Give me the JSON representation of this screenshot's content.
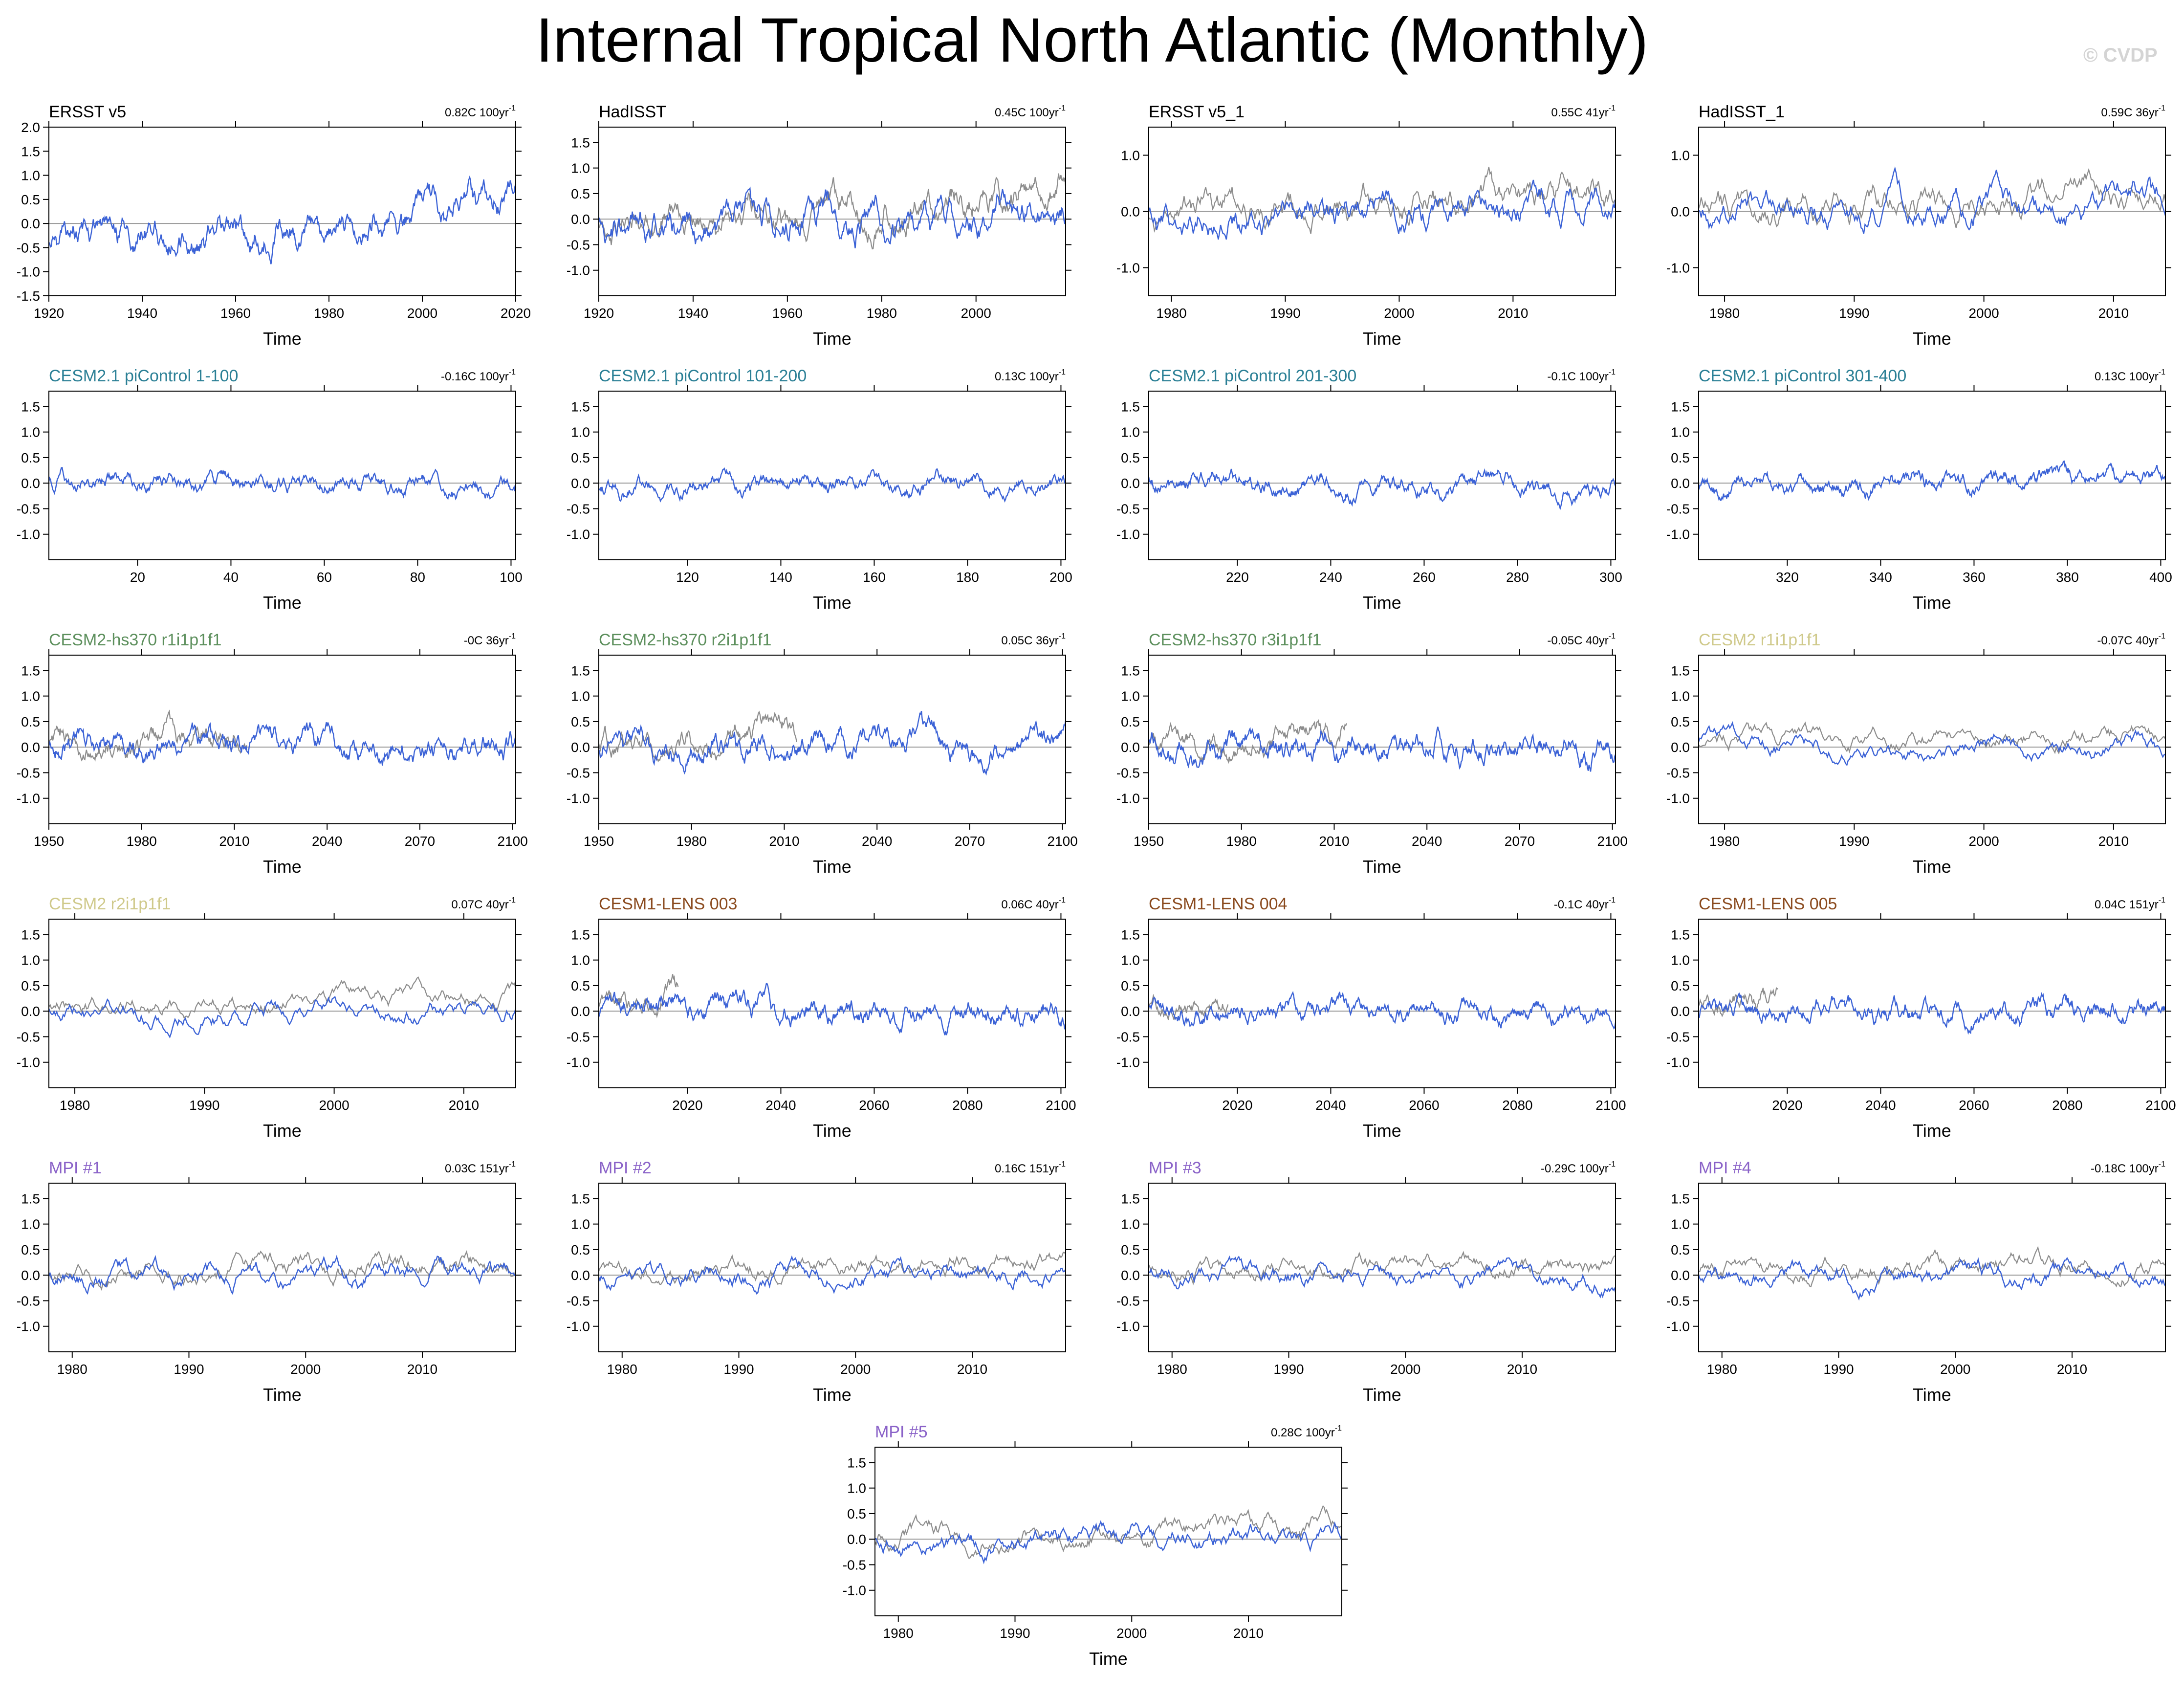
{
  "title": "Internal Tropical North Atlantic (Monthly)",
  "watermark": "© CVDP",
  "colors": {
    "simulation": "#3b62d6",
    "reference": "#8c8c8c",
    "zero_line": "#9a9a9a",
    "frame": "#000000"
  },
  "chart_data": [
    {
      "type": "line",
      "title": "ERSST v5",
      "title_color": "#000000",
      "trend": "0.82C 100yr",
      "trend_exp": "-1",
      "xlabel": "Time",
      "xlim": [
        1920,
        2020
      ],
      "xticks": [
        1920,
        1940,
        1960,
        1980,
        2000,
        2020
      ],
      "ylim": [
        -1.5,
        2.0
      ],
      "yticks": [
        -1.5,
        -1.0,
        -0.5,
        0.0,
        0.5,
        1.0,
        1.5,
        2.0
      ],
      "ref": false,
      "amp": 0.38,
      "trend_slope": 0.82,
      "seed": 1
    },
    {
      "type": "line",
      "title": "HadISST",
      "title_color": "#000000",
      "trend": "0.45C 100yr",
      "trend_exp": "-1",
      "xlabel": "Time",
      "xlim": [
        1920,
        2019
      ],
      "xticks": [
        1920,
        1940,
        1960,
        1980,
        2000
      ],
      "ylim": [
        -1.5,
        1.8
      ],
      "yticks": [
        -1.0,
        -0.5,
        0.0,
        0.5,
        1.0,
        1.5
      ],
      "ref": true,
      "amp": 0.38,
      "trend_slope": 0.45,
      "seed": 2
    },
    {
      "type": "line",
      "title": "ERSST v5_1",
      "title_color": "#000000",
      "trend": "0.55C 41yr",
      "trend_exp": "-1",
      "xlabel": "Time",
      "xlim": [
        1978,
        2019
      ],
      "xticks": [
        1980,
        1990,
        2000,
        2010
      ],
      "ylim": [
        -1.5,
        1.5
      ],
      "yticks": [
        -1.0,
        0.0,
        1.0
      ],
      "ref": true,
      "amp": 0.36,
      "trend_slope": 0.55,
      "seed": 3
    },
    {
      "type": "line",
      "title": "HadISST_1",
      "title_color": "#000000",
      "trend": "0.59C 36yr",
      "trend_exp": "-1",
      "xlabel": "Time",
      "xlim": [
        1978,
        2014
      ],
      "xticks": [
        1980,
        1990,
        2000,
        2010
      ],
      "ylim": [
        -1.5,
        1.5
      ],
      "yticks": [
        -1.0,
        0.0,
        1.0
      ],
      "ref": true,
      "amp": 0.36,
      "trend_slope": 0.59,
      "seed": 4
    },
    {
      "type": "line",
      "title": "CESM2.1 piControl 1-100",
      "title_color": "#2a7f95",
      "trend": "-0.16C 100yr",
      "trend_exp": "-1",
      "xlabel": "Time",
      "xlim": [
        1,
        101
      ],
      "xticks": [
        20,
        40,
        60,
        80,
        100
      ],
      "ylim": [
        -1.5,
        1.8
      ],
      "yticks": [
        -1.0,
        -0.5,
        0.0,
        0.5,
        1.0,
        1.5
      ],
      "ref": false,
      "amp": 0.2,
      "trend_slope": -0.16,
      "seed": 5
    },
    {
      "type": "line",
      "title": "CESM2.1 piControl 101-200",
      "title_color": "#2a7f95",
      "trend": "0.13C 100yr",
      "trend_exp": "-1",
      "xlabel": "Time",
      "xlim": [
        101,
        201
      ],
      "xticks": [
        120,
        140,
        160,
        180,
        200
      ],
      "ylim": [
        -1.5,
        1.8
      ],
      "yticks": [
        -1.0,
        -0.5,
        0.0,
        0.5,
        1.0,
        1.5
      ],
      "ref": false,
      "amp": 0.2,
      "trend_slope": 0.13,
      "seed": 6
    },
    {
      "type": "line",
      "title": "CESM2.1 piControl 201-300",
      "title_color": "#2a7f95",
      "trend": "-0.1C 100yr",
      "trend_exp": "-1",
      "xlabel": "Time",
      "xlim": [
        201,
        301
      ],
      "xticks": [
        220,
        240,
        260,
        280,
        300
      ],
      "ylim": [
        -1.5,
        1.8
      ],
      "yticks": [
        -1.0,
        -0.5,
        0.0,
        0.5,
        1.0,
        1.5
      ],
      "ref": false,
      "amp": 0.22,
      "trend_slope": -0.1,
      "seed": 7
    },
    {
      "type": "line",
      "title": "CESM2.1 piControl 301-400",
      "title_color": "#2a7f95",
      "trend": "0.13C 100yr",
      "trend_exp": "-1",
      "xlabel": "Time",
      "xlim": [
        301,
        401
      ],
      "xticks": [
        320,
        340,
        360,
        380,
        400
      ],
      "ylim": [
        -1.5,
        1.8
      ],
      "yticks": [
        -1.0,
        -0.5,
        0.0,
        0.5,
        1.0,
        1.5
      ],
      "ref": false,
      "amp": 0.22,
      "trend_slope": 0.13,
      "seed": 8
    },
    {
      "type": "line",
      "title": "CESM2-hs370 r1i1p1f1",
      "title_color": "#5c8f5c",
      "trend": "-0C 36yr",
      "trend_exp": "-1",
      "xlabel": "Time",
      "xlim": [
        1950,
        2101
      ],
      "xticks": [
        1950,
        1980,
        2010,
        2040,
        2070,
        2100
      ],
      "ylim": [
        -1.5,
        1.8
      ],
      "yticks": [
        -1.0,
        -0.5,
        0.0,
        0.5,
        1.0,
        1.5
      ],
      "ref": true,
      "ref_end": 2014,
      "amp": 0.3,
      "trend_slope": 0.0,
      "seed": 9
    },
    {
      "type": "line",
      "title": "CESM2-hs370 r2i1p1f1",
      "title_color": "#5c8f5c",
      "trend": "0.05C 36yr",
      "trend_exp": "-1",
      "xlabel": "Time",
      "xlim": [
        1950,
        2101
      ],
      "xticks": [
        1950,
        1980,
        2010,
        2040,
        2070,
        2100
      ],
      "ylim": [
        -1.5,
        1.8
      ],
      "yticks": [
        -1.0,
        -0.5,
        0.0,
        0.5,
        1.0,
        1.5
      ],
      "ref": true,
      "ref_end": 2014,
      "amp": 0.3,
      "trend_slope": 0.05,
      "seed": 10
    },
    {
      "type": "line",
      "title": "CESM2-hs370 r3i1p1f1",
      "title_color": "#5c8f5c",
      "trend": "-0.05C 40yr",
      "trend_exp": "-1",
      "xlabel": "Time",
      "xlim": [
        1950,
        2101
      ],
      "xticks": [
        1950,
        1980,
        2010,
        2040,
        2070,
        2100
      ],
      "ylim": [
        -1.5,
        1.8
      ],
      "yticks": [
        -1.0,
        -0.5,
        0.0,
        0.5,
        1.0,
        1.5
      ],
      "ref": true,
      "ref_end": 2014,
      "amp": 0.3,
      "trend_slope": -0.05,
      "seed": 11
    },
    {
      "type": "line",
      "title": "CESM2 r1i1p1f1",
      "title_color": "#cfc98a",
      "trend": "-0.07C 40yr",
      "trend_exp": "-1",
      "xlabel": "Time",
      "xlim": [
        1978,
        2014
      ],
      "xticks": [
        1980,
        1990,
        2000,
        2010
      ],
      "ylim": [
        -1.5,
        1.8
      ],
      "yticks": [
        -1.0,
        -0.5,
        0.0,
        0.5,
        1.0,
        1.5
      ],
      "ref": true,
      "amp": 0.22,
      "trend_slope": -0.07,
      "seed": 12
    },
    {
      "type": "line",
      "title": "CESM2 r2i1p1f1",
      "title_color": "#cfc98a",
      "trend": "0.07C 40yr",
      "trend_exp": "-1",
      "xlabel": "Time",
      "xlim": [
        1978,
        2014
      ],
      "xticks": [
        1980,
        1990,
        2000,
        2010
      ],
      "ylim": [
        -1.5,
        1.8
      ],
      "yticks": [
        -1.0,
        -0.5,
        0.0,
        0.5,
        1.0,
        1.5
      ],
      "ref": true,
      "amp": 0.22,
      "trend_slope": 0.07,
      "seed": 13
    },
    {
      "type": "line",
      "title": "CESM1-LENS 003",
      "title_color": "#8a4a1e",
      "trend": "0.06C 40yr",
      "trend_exp": "-1",
      "xlabel": "Time",
      "xlim": [
        2001,
        2101
      ],
      "xticks": [
        2020,
        2040,
        2060,
        2080,
        2100
      ],
      "ylim": [
        -1.5,
        1.8
      ],
      "yticks": [
        -1.0,
        -0.5,
        0.0,
        0.5,
        1.0,
        1.5
      ],
      "ref": true,
      "ref_end": 2018,
      "amp": 0.28,
      "trend_slope": 0.06,
      "seed": 14
    },
    {
      "type": "line",
      "title": "CESM1-LENS 004",
      "title_color": "#8a4a1e",
      "trend": "-0.1C 40yr",
      "trend_exp": "-1",
      "xlabel": "Time",
      "xlim": [
        2001,
        2101
      ],
      "xticks": [
        2020,
        2040,
        2060,
        2080,
        2100
      ],
      "ylim": [
        -1.5,
        1.8
      ],
      "yticks": [
        -1.0,
        -0.5,
        0.0,
        0.5,
        1.0,
        1.5
      ],
      "ref": true,
      "ref_end": 2018,
      "amp": 0.24,
      "trend_slope": -0.1,
      "seed": 15
    },
    {
      "type": "line",
      "title": "CESM1-LENS 005",
      "title_color": "#8a4a1e",
      "trend": "0.04C 151yr",
      "trend_exp": "-1",
      "xlabel": "Time",
      "xlim": [
        2001,
        2101
      ],
      "xticks": [
        2020,
        2040,
        2060,
        2080,
        2100
      ],
      "ylim": [
        -1.5,
        1.8
      ],
      "yticks": [
        -1.0,
        -0.5,
        0.0,
        0.5,
        1.0,
        1.5
      ],
      "ref": true,
      "ref_end": 2018,
      "amp": 0.26,
      "trend_slope": 0.04,
      "seed": 16
    },
    {
      "type": "line",
      "title": "MPI #1",
      "title_color": "#8a62c8",
      "trend": "0.03C 151yr",
      "trend_exp": "-1",
      "xlabel": "Time",
      "xlim": [
        1978,
        2018
      ],
      "xticks": [
        1980,
        1990,
        2000,
        2010
      ],
      "ylim": [
        -1.5,
        1.8
      ],
      "yticks": [
        -1.0,
        -0.5,
        0.0,
        0.5,
        1.0,
        1.5
      ],
      "ref": true,
      "amp": 0.24,
      "trend_slope": 0.03,
      "seed": 17
    },
    {
      "type": "line",
      "title": "MPI #2",
      "title_color": "#8a62c8",
      "trend": "0.16C 151yr",
      "trend_exp": "-1",
      "xlabel": "Time",
      "xlim": [
        1978,
        2018
      ],
      "xticks": [
        1980,
        1990,
        2000,
        2010
      ],
      "ylim": [
        -1.5,
        1.8
      ],
      "yticks": [
        -1.0,
        -0.5,
        0.0,
        0.5,
        1.0,
        1.5
      ],
      "ref": true,
      "amp": 0.22,
      "trend_slope": 0.16,
      "seed": 18
    },
    {
      "type": "line",
      "title": "MPI #3",
      "title_color": "#8a62c8",
      "trend": "-0.29C 100yr",
      "trend_exp": "-1",
      "xlabel": "Time",
      "xlim": [
        1978,
        2018
      ],
      "xticks": [
        1980,
        1990,
        2000,
        2010
      ],
      "ylim": [
        -1.5,
        1.8
      ],
      "yticks": [
        -1.0,
        -0.5,
        0.0,
        0.5,
        1.0,
        1.5
      ],
      "ref": true,
      "amp": 0.22,
      "trend_slope": -0.29,
      "seed": 19
    },
    {
      "type": "line",
      "title": "MPI #4",
      "title_color": "#8a62c8",
      "trend": "-0.18C 100yr",
      "trend_exp": "-1",
      "xlabel": "Time",
      "xlim": [
        1978,
        2018
      ],
      "xticks": [
        1980,
        1990,
        2000,
        2010
      ],
      "ylim": [
        -1.5,
        1.8
      ],
      "yticks": [
        -1.0,
        -0.5,
        0.0,
        0.5,
        1.0,
        1.5
      ],
      "ref": true,
      "amp": 0.22,
      "trend_slope": -0.18,
      "seed": 20
    },
    {
      "type": "line",
      "title": "MPI #5",
      "title_color": "#8a62c8",
      "trend": "0.28C 100yr",
      "trend_exp": "-1",
      "xlabel": "Time",
      "xlim": [
        1978,
        2018
      ],
      "xticks": [
        1980,
        1990,
        2000,
        2010
      ],
      "ylim": [
        -1.5,
        1.8
      ],
      "yticks": [
        -1.0,
        -0.5,
        0.0,
        0.5,
        1.0,
        1.5
      ],
      "ref": true,
      "amp": 0.24,
      "trend_slope": 0.28,
      "seed": 21
    }
  ]
}
